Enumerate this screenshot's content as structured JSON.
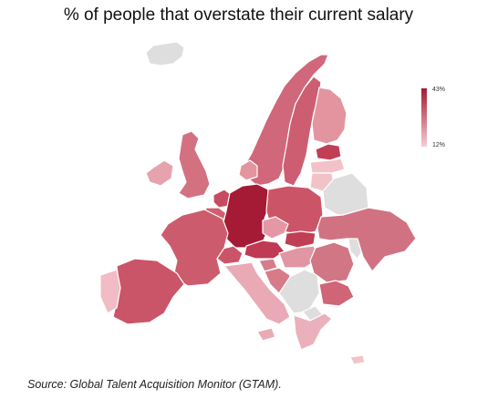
{
  "title": "% of people that overstate their current salary",
  "source": "Source: Global Talent Acquisition Monitor (GTAM).",
  "legend": {
    "max_label": "43%",
    "min_label": "12%",
    "max_color": "#a51a34",
    "min_color": "#f6cdd4"
  },
  "colors": {
    "no_data": "#dedede"
  },
  "regions": [
    {
      "name": "Iceland",
      "fill": "#dedede"
    },
    {
      "name": "Norway",
      "fill": "#d0677a"
    },
    {
      "name": "Sweden",
      "fill": "#cd5e72"
    },
    {
      "name": "Finland",
      "fill": "#e2959f"
    },
    {
      "name": "Estonia",
      "fill": "#c03f56"
    },
    {
      "name": "Latvia",
      "fill": "#f2c2c9"
    },
    {
      "name": "Lithuania",
      "fill": "#f2c2c9"
    },
    {
      "name": "Belarus",
      "fill": "#dedede"
    },
    {
      "name": "United Kingdom",
      "fill": "#d47181"
    },
    {
      "name": "Ireland",
      "fill": "#e6a3ae"
    },
    {
      "name": "Denmark",
      "fill": "#e3959f"
    },
    {
      "name": "Netherlands",
      "fill": "#c94b60"
    },
    {
      "name": "Belgium",
      "fill": "#d06070"
    },
    {
      "name": "Germany",
      "fill": "#a51a34"
    },
    {
      "name": "Poland",
      "fill": "#cb5567"
    },
    {
      "name": "Czechia",
      "fill": "#e497a4"
    },
    {
      "name": "Slovakia",
      "fill": "#c03f56"
    },
    {
      "name": "Austria",
      "fill": "#bf3a52"
    },
    {
      "name": "Switzerland",
      "fill": "#ca5468"
    },
    {
      "name": "France",
      "fill": "#cd5b6e"
    },
    {
      "name": "Spain",
      "fill": "#ca5568"
    },
    {
      "name": "Portugal",
      "fill": "#f1bcc5"
    },
    {
      "name": "Italy",
      "fill": "#e9aab5"
    },
    {
      "name": "Hungary",
      "fill": "#e097a3"
    },
    {
      "name": "Slovenia",
      "fill": "#d77c8a"
    },
    {
      "name": "Croatia",
      "fill": "#d87b88"
    },
    {
      "name": "Western Balkans",
      "fill": "#dedede"
    },
    {
      "name": "Romania",
      "fill": "#d07685"
    },
    {
      "name": "Moldova",
      "fill": "#dedede"
    },
    {
      "name": "Ukraine",
      "fill": "#d17283"
    },
    {
      "name": "Bulgaria",
      "fill": "#cf6576"
    },
    {
      "name": "North Macedonia",
      "fill": "#dedede"
    },
    {
      "name": "Greece",
      "fill": "#ebb1bb"
    },
    {
      "name": "Cyprus",
      "fill": "#f2c2c9"
    }
  ]
}
